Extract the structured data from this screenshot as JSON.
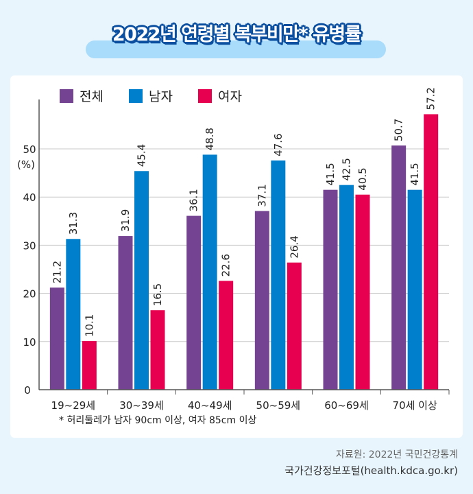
{
  "title": "2022년 연령별 복부비만* 유병률",
  "footnote": "* 허리둘레가 남자 90cm 이상, 여자 85cm 이상",
  "source": "자료원: 2022년 국민건강통계",
  "portal": "국가건강정보포털(health.kdca.go.kr)",
  "chart_data": {
    "type": "bar",
    "title": "2022년 연령별 복부비만* 유병률",
    "ylabel": "(%)",
    "ylim": [
      0,
      60
    ],
    "yticks": [
      0,
      10,
      20,
      30,
      40,
      50
    ],
    "grid": true,
    "legend_position": "top-left",
    "categories": [
      "19~29세",
      "30~39세",
      "40~49세",
      "50~59세",
      "60~69세",
      "70세 이상"
    ],
    "series": [
      {
        "name": "전체",
        "color": "#744391",
        "values": [
          21.2,
          31.9,
          36.1,
          37.1,
          41.5,
          50.7
        ]
      },
      {
        "name": "남자",
        "color": "#0080cc",
        "values": [
          31.3,
          45.4,
          48.8,
          47.6,
          42.5,
          41.5
        ]
      },
      {
        "name": "여자",
        "color": "#e6004f",
        "values": [
          10.1,
          16.5,
          22.6,
          26.4,
          40.5,
          57.2
        ]
      }
    ]
  }
}
